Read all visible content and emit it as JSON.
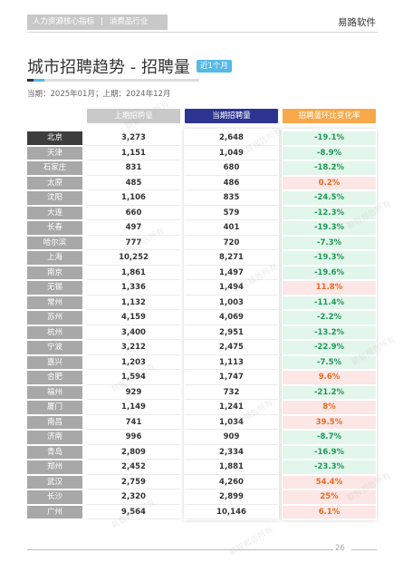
{
  "header": {
    "tags": [
      "人力资源核心指标",
      "消费品行业"
    ],
    "separator": "|",
    "brand": "易路软件"
  },
  "title": "城市招聘趋势 - 招聘量",
  "badge": "近1个月",
  "subtitle": "当期：2025年01月；上期：2024年12月",
  "columns": {
    "prev": "上期招聘量",
    "curr": "当期招聘量",
    "change": "招聘量环比变化率"
  },
  "rows": [
    {
      "city": "北京",
      "prev": "3,273",
      "curr": "2,648",
      "change": "-19.1%",
      "dir": "neg"
    },
    {
      "city": "天津",
      "prev": "1,151",
      "curr": "1,049",
      "change": "-8.9%",
      "dir": "neg"
    },
    {
      "city": "石家庄",
      "prev": "831",
      "curr": "680",
      "change": "-18.2%",
      "dir": "neg"
    },
    {
      "city": "太原",
      "prev": "485",
      "curr": "486",
      "change": "0.2%",
      "dir": "pos"
    },
    {
      "city": "沈阳",
      "prev": "1,106",
      "curr": "835",
      "change": "-24.5%",
      "dir": "neg"
    },
    {
      "city": "大连",
      "prev": "660",
      "curr": "579",
      "change": "-12.3%",
      "dir": "neg"
    },
    {
      "city": "长春",
      "prev": "497",
      "curr": "401",
      "change": "-19.3%",
      "dir": "neg"
    },
    {
      "city": "哈尔滨",
      "prev": "777",
      "curr": "720",
      "change": "-7.3%",
      "dir": "neg"
    },
    {
      "city": "上海",
      "prev": "10,252",
      "curr": "8,271",
      "change": "-19.3%",
      "dir": "neg"
    },
    {
      "city": "南京",
      "prev": "1,861",
      "curr": "1,497",
      "change": "-19.6%",
      "dir": "neg"
    },
    {
      "city": "无锡",
      "prev": "1,336",
      "curr": "1,494",
      "change": "11.8%",
      "dir": "pos"
    },
    {
      "city": "常州",
      "prev": "1,132",
      "curr": "1,003",
      "change": "-11.4%",
      "dir": "neg"
    },
    {
      "city": "苏州",
      "prev": "4,159",
      "curr": "4,069",
      "change": "-2.2%",
      "dir": "neg"
    },
    {
      "city": "杭州",
      "prev": "3,400",
      "curr": "2,951",
      "change": "-13.2%",
      "dir": "neg"
    },
    {
      "city": "宁波",
      "prev": "3,212",
      "curr": "2,475",
      "change": "-22.9%",
      "dir": "neg"
    },
    {
      "city": "嘉兴",
      "prev": "1,203",
      "curr": "1,113",
      "change": "-7.5%",
      "dir": "neg"
    },
    {
      "city": "合肥",
      "prev": "1,594",
      "curr": "1,747",
      "change": "9.6%",
      "dir": "pos"
    },
    {
      "city": "福州",
      "prev": "929",
      "curr": "732",
      "change": "-21.2%",
      "dir": "neg"
    },
    {
      "city": "厦门",
      "prev": "1,149",
      "curr": "1,241",
      "change": "8%",
      "dir": "pos"
    },
    {
      "city": "南昌",
      "prev": "741",
      "curr": "1,034",
      "change": "39.5%",
      "dir": "pos"
    },
    {
      "city": "济南",
      "prev": "996",
      "curr": "909",
      "change": "-8.7%",
      "dir": "neg"
    },
    {
      "city": "青岛",
      "prev": "2,809",
      "curr": "2,334",
      "change": "-16.9%",
      "dir": "neg"
    },
    {
      "city": "郑州",
      "prev": "2,452",
      "curr": "1,881",
      "change": "-23.3%",
      "dir": "neg"
    },
    {
      "city": "武汉",
      "prev": "2,759",
      "curr": "4,260",
      "change": "54.4%",
      "dir": "pos"
    },
    {
      "city": "长沙",
      "prev": "2,320",
      "curr": "2,899",
      "change": "25%",
      "dir": "pos"
    },
    {
      "city": "广州",
      "prev": "9,564",
      "curr": "10,146",
      "change": "6.1%",
      "dir": "pos"
    }
  ],
  "colors": {
    "current_header": "#2c3591",
    "change_header": "#f7a84a",
    "negative": "#1e9a55",
    "positive": "#e86a1f",
    "badge": "#57b9e6"
  },
  "watermark": "薪智报告所有",
  "page_number": "26"
}
